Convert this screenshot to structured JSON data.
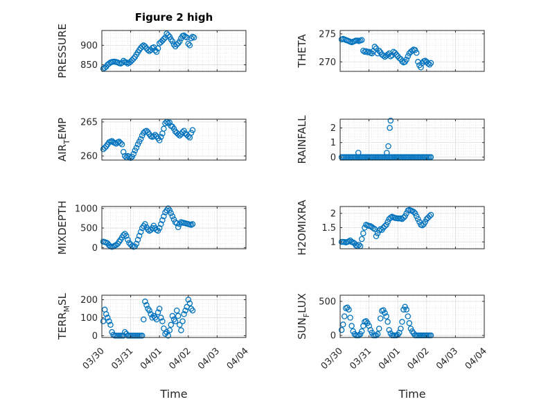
{
  "chart_data": {
    "type": "scatter",
    "title": "Figure 2 high",
    "marker": "open-circle",
    "marker_color": "#0072BD",
    "x_ticks": [
      "03/30",
      "03/31",
      "04/01",
      "04/02",
      "04/03",
      "04/04"
    ],
    "xlabel": "Time",
    "panels": [
      {
        "ylabel": "PRESSURE",
        "ylim": [
          833,
          938
        ],
        "yticks": [
          850,
          900
        ],
        "ytick_labels": [
          "850",
          "900"
        ],
        "x": [
          0.05,
          0.1,
          0.15,
          0.2,
          0.25,
          0.3,
          0.35,
          0.4,
          0.45,
          0.5,
          0.55,
          0.6,
          0.65,
          0.7,
          0.75,
          0.8,
          0.85,
          0.9,
          0.95,
          1.0,
          1.05,
          1.1,
          1.15,
          1.2,
          1.25,
          1.3,
          1.35,
          1.4,
          1.45,
          1.5,
          1.55,
          1.6,
          1.65,
          1.7,
          1.75,
          1.8,
          1.85,
          1.9,
          1.95,
          2.0,
          2.05,
          2.1,
          2.15,
          2.2,
          2.25,
          2.3,
          2.35,
          2.4,
          2.45,
          2.5,
          2.55,
          2.6,
          2.65,
          2.7,
          2.75,
          2.8,
          2.85,
          2.9,
          2.95,
          3.0,
          3.05,
          3.1,
          3.15,
          3.2
        ],
        "y": [
          840,
          842,
          845,
          850,
          853,
          856,
          857,
          858,
          858,
          857,
          856,
          854,
          853,
          855,
          860,
          857,
          856,
          853,
          855,
          858,
          862,
          866,
          870,
          876,
          882,
          888,
          893,
          897,
          900,
          897,
          892,
          888,
          885,
          888,
          893,
          895,
          887,
          883,
          892,
          905,
          908,
          912,
          916,
          920,
          930,
          926,
          922,
          915,
          910,
          902,
          897,
          902,
          905,
          910,
          918,
          924,
          925,
          922,
          920,
          904,
          900,
          918,
          922,
          920
        ]
      },
      {
        "ylabel": "THETA",
        "ylim": [
          268.3,
          275.6
        ],
        "yticks": [
          270,
          275
        ],
        "ytick_labels": [
          "270",
          "275"
        ],
        "x": [
          0.05,
          0.1,
          0.15,
          0.2,
          0.25,
          0.3,
          0.35,
          0.4,
          0.45,
          0.5,
          0.55,
          0.6,
          0.65,
          0.7,
          0.75,
          0.8,
          0.85,
          0.9,
          0.95,
          1.0,
          1.05,
          1.1,
          1.15,
          1.2,
          1.25,
          1.3,
          1.35,
          1.4,
          1.45,
          1.5,
          1.55,
          1.6,
          1.65,
          1.7,
          1.75,
          1.8,
          1.85,
          1.9,
          1.95,
          2.0,
          2.05,
          2.1,
          2.15,
          2.2,
          2.25,
          2.3,
          2.35,
          2.4,
          2.45,
          2.5,
          2.55,
          2.6,
          2.65,
          2.7,
          2.75,
          2.8,
          2.85,
          2.9,
          2.95,
          3.0,
          3.05,
          3.1,
          3.15
        ],
        "y": [
          274.0,
          274.1,
          274.0,
          273.9,
          273.8,
          273.7,
          273.6,
          273.5,
          273.6,
          273.7,
          273.8,
          273.8,
          273.7,
          273.8,
          273.9,
          272.0,
          271.8,
          271.9,
          271.7,
          271.8,
          271.6,
          271.5,
          271.9,
          272.7,
          272.4,
          271.5,
          272.0,
          271.7,
          271.3,
          271.1,
          270.9,
          271.1,
          271.3,
          271.5,
          271.0,
          271.2,
          271.8,
          271.6,
          271.3,
          271.0,
          270.7,
          270.5,
          270.1,
          269.9,
          270.0,
          270.4,
          271.0,
          271.5,
          271.8,
          272.0,
          272.2,
          272.1,
          271.6,
          270.0,
          269.4,
          269.0,
          269.8,
          270.1,
          270.2,
          270.0,
          269.7,
          269.5,
          269.8
        ]
      },
      {
        "ylabel": "AIR_TEMP",
        "ylabel_main": "AIR",
        "ylabel_sub": "T",
        "ylabel_rest": "EMP",
        "ylim": [
          259.4,
          265.4
        ],
        "yticks": [
          260,
          265
        ],
        "ytick_labels": [
          "260",
          "265"
        ],
        "x": [
          0.05,
          0.1,
          0.15,
          0.2,
          0.25,
          0.3,
          0.35,
          0.4,
          0.45,
          0.5,
          0.55,
          0.6,
          0.65,
          0.7,
          0.75,
          0.8,
          0.85,
          0.9,
          0.95,
          1.0,
          1.05,
          1.1,
          1.15,
          1.2,
          1.25,
          1.3,
          1.35,
          1.4,
          1.45,
          1.5,
          1.55,
          1.6,
          1.65,
          1.7,
          1.75,
          1.8,
          1.85,
          1.9,
          1.95,
          2.0,
          2.05,
          2.1,
          2.15,
          2.2,
          2.25,
          2.3,
          2.35,
          2.4,
          2.45,
          2.5,
          2.55,
          2.6,
          2.65,
          2.7,
          2.75,
          2.8,
          2.85,
          2.9,
          2.95,
          3.0,
          3.05,
          3.1,
          3.15
        ],
        "y": [
          261.0,
          261.2,
          261.4,
          261.7,
          262.0,
          262.1,
          262.2,
          262.0,
          261.9,
          261.8,
          262.0,
          262.1,
          261.9,
          261.7,
          260.6,
          260.0,
          259.8,
          260.0,
          259.9,
          259.7,
          259.9,
          260.3,
          260.8,
          261.2,
          261.7,
          262.1,
          262.5,
          263.0,
          263.4,
          263.6,
          263.7,
          263.5,
          263.2,
          262.9,
          262.8,
          262.9,
          263.1,
          262.9,
          262.6,
          262.3,
          262.8,
          263.3,
          264.0,
          264.8,
          265.0,
          264.8,
          264.9,
          264.4,
          264.3,
          264.0,
          263.6,
          263.4,
          263.2,
          263.0,
          263.2,
          263.5,
          263.7,
          263.3,
          263.1,
          262.9,
          262.7,
          263.4,
          263.8
        ]
      },
      {
        "ylabel": "RAINFALL",
        "ylim": [
          -0.2,
          2.6
        ],
        "yticks": [
          0,
          1,
          2
        ],
        "ytick_labels": [
          "0",
          "1",
          "2"
        ],
        "x": [
          0.05,
          0.1,
          0.15,
          0.2,
          0.25,
          0.3,
          0.35,
          0.4,
          0.45,
          0.5,
          0.55,
          0.6,
          0.65,
          0.7,
          0.75,
          0.8,
          0.85,
          0.9,
          0.95,
          1.0,
          1.05,
          1.1,
          1.15,
          1.2,
          1.25,
          1.3,
          1.35,
          1.4,
          1.45,
          1.5,
          1.55,
          1.6,
          1.65,
          1.7,
          1.75,
          1.8,
          1.85,
          1.9,
          1.95,
          2.0,
          2.05,
          2.1,
          2.15,
          2.2,
          2.25,
          2.3,
          2.35,
          2.4,
          2.45,
          2.5,
          2.55,
          2.6,
          2.65,
          2.7,
          2.75,
          2.8,
          2.85,
          2.9,
          2.95,
          3.0,
          3.05,
          3.1,
          3.15,
          0.63,
          1.62,
          1.67,
          1.72,
          1.75
        ],
        "y": [
          0,
          0,
          0,
          0,
          0,
          0,
          0,
          0,
          0,
          0,
          0,
          0,
          0,
          0,
          0,
          0,
          0,
          0,
          0,
          0,
          0,
          0,
          0,
          0,
          0,
          0,
          0,
          0,
          0,
          0,
          0,
          0,
          0,
          0,
          0,
          0,
          0,
          0,
          0,
          0,
          0,
          0,
          0,
          0,
          0,
          0,
          0,
          0,
          0,
          0,
          0,
          0,
          0,
          0,
          0,
          0,
          0,
          0,
          0,
          0,
          0,
          0,
          0,
          0.3,
          0.3,
          0.75,
          2.0,
          2.5
        ]
      },
      {
        "ylabel": "MIXDEPTH",
        "ylim": [
          -30,
          1050
        ],
        "yticks": [
          0,
          500,
          1000
        ],
        "ytick_labels": [
          "0",
          "500",
          "1000"
        ],
        "x": [
          0.05,
          0.1,
          0.15,
          0.2,
          0.25,
          0.3,
          0.35,
          0.4,
          0.45,
          0.5,
          0.55,
          0.6,
          0.65,
          0.7,
          0.75,
          0.8,
          0.85,
          0.9,
          0.95,
          1.0,
          1.05,
          1.1,
          1.15,
          1.2,
          1.25,
          1.3,
          1.35,
          1.4,
          1.45,
          1.5,
          1.55,
          1.6,
          1.65,
          1.7,
          1.75,
          1.8,
          1.85,
          1.9,
          1.95,
          2.0,
          2.05,
          2.1,
          2.15,
          2.2,
          2.25,
          2.3,
          2.35,
          2.4,
          2.45,
          2.5,
          2.55,
          2.6,
          2.65,
          2.7,
          2.75,
          2.8,
          2.85,
          2.9,
          2.95,
          3.0,
          3.05,
          3.1,
          3.15
        ],
        "y": [
          150,
          140,
          130,
          110,
          60,
          30,
          20,
          30,
          50,
          70,
          100,
          150,
          200,
          260,
          320,
          350,
          300,
          200,
          120,
          80,
          40,
          20,
          30,
          100,
          200,
          300,
          400,
          500,
          550,
          600,
          520,
          460,
          430,
          450,
          500,
          560,
          500,
          450,
          430,
          500,
          600,
          700,
          800,
          900,
          950,
          1000,
          950,
          880,
          800,
          720,
          650,
          620,
          520,
          600,
          650,
          640,
          630,
          620,
          610,
          600,
          590,
          580,
          600
        ]
      },
      {
        "ylabel": "H2OMIXRA",
        "ylim": [
          0.76,
          2.24
        ],
        "yticks": [
          1,
          1.5,
          2
        ],
        "ytick_labels": [
          "1",
          "1.5",
          "2"
        ],
        "x": [
          0.05,
          0.1,
          0.15,
          0.2,
          0.25,
          0.3,
          0.35,
          0.4,
          0.45,
          0.5,
          0.55,
          0.6,
          0.65,
          0.7,
          0.75,
          0.8,
          0.85,
          0.9,
          0.95,
          1.0,
          1.05,
          1.1,
          1.15,
          1.2,
          1.25,
          1.3,
          1.35,
          1.4,
          1.45,
          1.5,
          1.55,
          1.6,
          1.65,
          1.7,
          1.75,
          1.8,
          1.85,
          1.9,
          1.95,
          2.0,
          2.05,
          2.1,
          2.15,
          2.2,
          2.25,
          2.3,
          2.35,
          2.4,
          2.45,
          2.5,
          2.55,
          2.6,
          2.65,
          2.7,
          2.75,
          2.8,
          2.85,
          2.9,
          2.95,
          3.0,
          3.05,
          3.1,
          3.15
        ],
        "y": [
          1.0,
          1.0,
          1.0,
          0.98,
          1.0,
          1.02,
          1.05,
          1.0,
          0.98,
          0.95,
          0.88,
          0.85,
          0.9,
          0.85,
          1.1,
          1.3,
          1.5,
          1.6,
          1.58,
          1.56,
          1.55,
          1.52,
          1.48,
          1.45,
          1.2,
          1.3,
          1.4,
          1.45,
          1.42,
          1.5,
          1.55,
          1.6,
          1.7,
          1.8,
          1.85,
          1.88,
          1.86,
          1.84,
          1.83,
          1.82,
          1.82,
          1.82,
          1.8,
          1.85,
          1.9,
          2.0,
          2.1,
          2.12,
          2.1,
          2.08,
          2.05,
          2.0,
          1.9,
          1.8,
          1.7,
          1.6,
          1.58,
          1.62,
          1.7,
          1.8,
          1.85,
          1.9,
          1.95
        ]
      },
      {
        "ylabel": "TERR_MSL",
        "ylabel_main": "TERR",
        "ylabel_sub": "M",
        "ylabel_rest": "SL",
        "ylim": [
          -10,
          225
        ],
        "yticks": [
          0,
          100,
          200
        ],
        "ytick_labels": [
          "0",
          "100",
          "200"
        ],
        "x": [
          0.05,
          0.1,
          0.15,
          0.2,
          0.25,
          0.3,
          0.35,
          0.4,
          0.45,
          0.5,
          0.55,
          0.6,
          0.65,
          0.7,
          0.75,
          0.8,
          0.85,
          0.9,
          0.95,
          1.0,
          1.05,
          1.1,
          1.15,
          1.2,
          1.25,
          1.3,
          1.35,
          1.4,
          1.45,
          1.5,
          1.55,
          1.6,
          1.65,
          1.7,
          1.75,
          1.8,
          1.85,
          1.9,
          1.95,
          2.0,
          2.05,
          2.1,
          2.15,
          2.2,
          2.25,
          2.3,
          2.35,
          2.4,
          2.45,
          2.5,
          2.55,
          2.6,
          2.65,
          2.7,
          2.75,
          2.8,
          2.85,
          2.9,
          2.95,
          3.0,
          3.05,
          3.1,
          3.15
        ],
        "y": [
          80,
          145,
          120,
          100,
          80,
          60,
          20,
          5,
          0,
          0,
          0,
          0,
          0,
          0,
          0,
          20,
          10,
          0,
          0,
          0,
          0,
          0,
          0,
          0,
          0,
          0,
          0,
          0,
          90,
          190,
          170,
          150,
          140,
          120,
          100,
          110,
          100,
          90,
          130,
          150,
          100,
          80,
          40,
          10,
          20,
          0,
          30,
          60,
          110,
          90,
          80,
          140,
          110,
          60,
          30,
          80,
          120,
          140,
          160,
          200,
          180,
          150,
          140
        ]
      },
      {
        "ylabel": "SUN_FLUX",
        "ylabel_main": "SUN",
        "ylabel_sub": "F",
        "ylabel_rest": "LUX",
        "ylim": [
          -30,
          590
        ],
        "yticks": [
          0,
          500
        ],
        "ytick_labels": [
          "0",
          "500"
        ],
        "x": [
          0.05,
          0.1,
          0.15,
          0.2,
          0.25,
          0.3,
          0.35,
          0.4,
          0.45,
          0.5,
          0.55,
          0.6,
          0.65,
          0.7,
          0.75,
          0.8,
          0.85,
          0.9,
          0.95,
          1.0,
          1.05,
          1.1,
          1.15,
          1.2,
          1.25,
          1.3,
          1.35,
          1.4,
          1.45,
          1.5,
          1.55,
          1.6,
          1.65,
          1.7,
          1.75,
          1.8,
          1.85,
          1.9,
          1.95,
          2.0,
          2.05,
          2.1,
          2.15,
          2.2,
          2.25,
          2.3,
          2.35,
          2.4,
          2.45,
          2.5,
          2.55,
          2.6,
          2.65,
          2.7,
          2.75,
          2.8,
          2.85,
          2.9,
          2.95,
          3.0,
          3.05,
          3.1,
          3.15
        ],
        "y": [
          80,
          160,
          280,
          400,
          410,
          380,
          260,
          140,
          60,
          20,
          0,
          0,
          0,
          20,
          60,
          140,
          200,
          210,
          180,
          140,
          80,
          40,
          0,
          0,
          0,
          20,
          100,
          250,
          360,
          370,
          330,
          280,
          200,
          80,
          30,
          0,
          0,
          0,
          0,
          10,
          40,
          100,
          200,
          380,
          420,
          380,
          280,
          180,
          100,
          60,
          30,
          0,
          0,
          0,
          0,
          0,
          0,
          0,
          0,
          0,
          0,
          0,
          0
        ]
      }
    ]
  }
}
